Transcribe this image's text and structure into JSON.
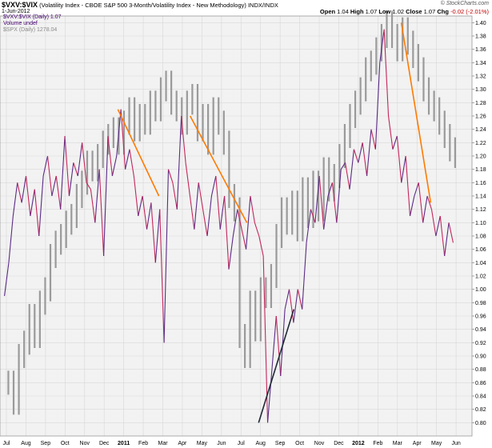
{
  "header": {
    "symbol": "$VXV:$VIX",
    "description": "(Volatility Index - CBOE S&P 500 3-Month/Volatility Index - New Methodology) INDX/INDX",
    "date": "1-Jun-2012",
    "brand": "© StockCharts.com",
    "open_label": "Open",
    "open": "1.04",
    "high_label": "High",
    "high": "1.07",
    "low_label": "Low",
    "low": "1.02",
    "close_label": "Close",
    "close": "1.07",
    "chg_label": "Chg",
    "chg": "-0.02 (-2.01%)"
  },
  "legend": {
    "main": "$VXV:$VIX (Daily) 1.07",
    "volume": "Volume undef",
    "overlay": "$SPX (Daily) 1278.04"
  },
  "colors": {
    "ratio_line": "#5b2a86",
    "ratio_down": "#c4265b",
    "spx_bars": "#9a9a9a",
    "trend_down": "#ff7a00",
    "trend_up": "#1f2a36",
    "grid": "#d8d8d8",
    "plot_bg": "#f2f2f2"
  },
  "chart_data": {
    "type": "line",
    "y_axis": {
      "min": 0.78,
      "max": 1.41,
      "ticks": [
        "0.80",
        "0.82",
        "0.84",
        "0.86",
        "0.88",
        "0.90",
        "0.92",
        "0.94",
        "0.96",
        "0.98",
        "1.00",
        "1.02",
        "1.04",
        "1.06",
        "1.08",
        "1.10",
        "1.12",
        "1.14",
        "1.16",
        "1.18",
        "1.20",
        "1.22",
        "1.24",
        "1.26",
        "1.28",
        "1.30",
        "1.32",
        "1.34",
        "1.36",
        "1.38",
        "1.40"
      ],
      "side": "right"
    },
    "x_axis": {
      "labels": [
        "Jul",
        "Aug",
        "Sep",
        "Oct",
        "Nov",
        "Dec",
        "2011",
        "Feb",
        "Mar",
        "Apr",
        "May",
        "Jun",
        "Jul",
        "Aug",
        "Sep",
        "Oct",
        "Nov",
        "Dec",
        "2012",
        "Feb",
        "Mar",
        "Apr",
        "May",
        "Jun"
      ],
      "bold_labels": [
        "2011",
        "2012"
      ]
    },
    "series": [
      {
        "key": "ratio",
        "values": [
          0.99,
          1.04,
          1.11,
          1.16,
          1.13,
          1.17,
          1.11,
          1.15,
          1.08,
          1.17,
          1.2,
          1.14,
          1.17,
          1.12,
          1.23,
          1.14,
          1.19,
          1.17,
          1.22,
          1.16,
          1.15,
          1.1,
          1.18,
          1.05,
          1.23,
          1.17,
          1.2,
          1.27,
          1.18,
          1.21,
          1.17,
          1.11,
          1.14,
          1.09,
          1.13,
          1.04,
          1.12,
          0.92,
          1.18,
          1.16,
          1.12,
          1.26,
          1.19,
          1.14,
          1.09,
          1.16,
          1.12,
          1.08,
          1.14,
          1.17,
          1.09,
          1.14,
          1.03,
          1.08,
          1.12,
          1.09,
          1.06,
          1.14,
          1.1,
          1.08,
          1.05,
          0.8,
          0.88,
          0.96,
          0.87,
          0.97,
          1.0,
          0.95,
          1.0,
          0.97,
          1.07,
          1.12,
          1.1,
          1.17,
          1.09,
          1.14,
          1.16,
          1.1,
          1.18,
          1.19,
          1.15,
          1.21,
          1.19,
          1.22,
          1.17,
          1.24,
          1.21,
          1.34,
          1.39,
          1.26,
          1.21,
          1.23,
          1.16,
          1.2,
          1.11,
          1.14,
          1.16,
          1.1,
          1.14,
          1.12,
          1.08,
          1.11,
          1.05,
          1.1,
          1.07
        ]
      },
      {
        "key": "spx",
        "values": [
          0.86,
          0.83,
          0.9,
          0.92,
          0.96,
          0.93,
          0.98,
          1.0,
          1.05,
          1.07,
          1.08,
          1.1,
          1.11,
          1.14,
          1.16,
          1.19,
          1.18,
          1.2,
          1.22,
          1.23,
          1.24,
          1.22,
          1.25,
          1.27,
          1.24,
          1.26,
          1.25,
          1.28,
          1.27,
          1.3,
          1.31,
          1.28,
          1.27,
          1.25,
          1.28,
          1.29,
          1.24,
          1.26,
          1.22,
          1.27,
          1.25,
          1.22,
          1.14,
          1.12,
          0.93,
          0.9,
          0.98,
          0.94,
          1.0,
          0.99,
          1.02,
          1.08,
          1.12,
          1.1,
          1.13,
          1.09,
          1.15,
          1.11,
          1.16,
          1.12,
          1.18,
          1.15,
          1.17,
          1.2,
          1.23,
          1.26,
          1.28,
          1.3,
          1.33,
          1.34,
          1.36,
          1.38,
          1.4,
          1.38,
          1.36,
          1.39,
          1.37,
          1.35,
          1.33,
          1.3,
          1.28,
          1.27,
          1.25,
          1.23,
          1.21,
          1.2
        ]
      }
    ],
    "trendlines": [
      {
        "color_key": "trend_down",
        "x1_month": 5.7,
        "y1": 1.27,
        "x2_month": 7.8,
        "y2": 1.14
      },
      {
        "color_key": "trend_down",
        "x1_month": 9.4,
        "y1": 1.26,
        "x2_month": 12.3,
        "y2": 1.1
      },
      {
        "color_key": "trend_up",
        "x1_month": 12.9,
        "y1": 0.8,
        "x2_month": 14.7,
        "y2": 0.97
      },
      {
        "color_key": "trend_down",
        "x1_month": 20.2,
        "y1": 1.4,
        "x2_month": 21.7,
        "y2": 1.13
      }
    ],
    "grid": true
  }
}
